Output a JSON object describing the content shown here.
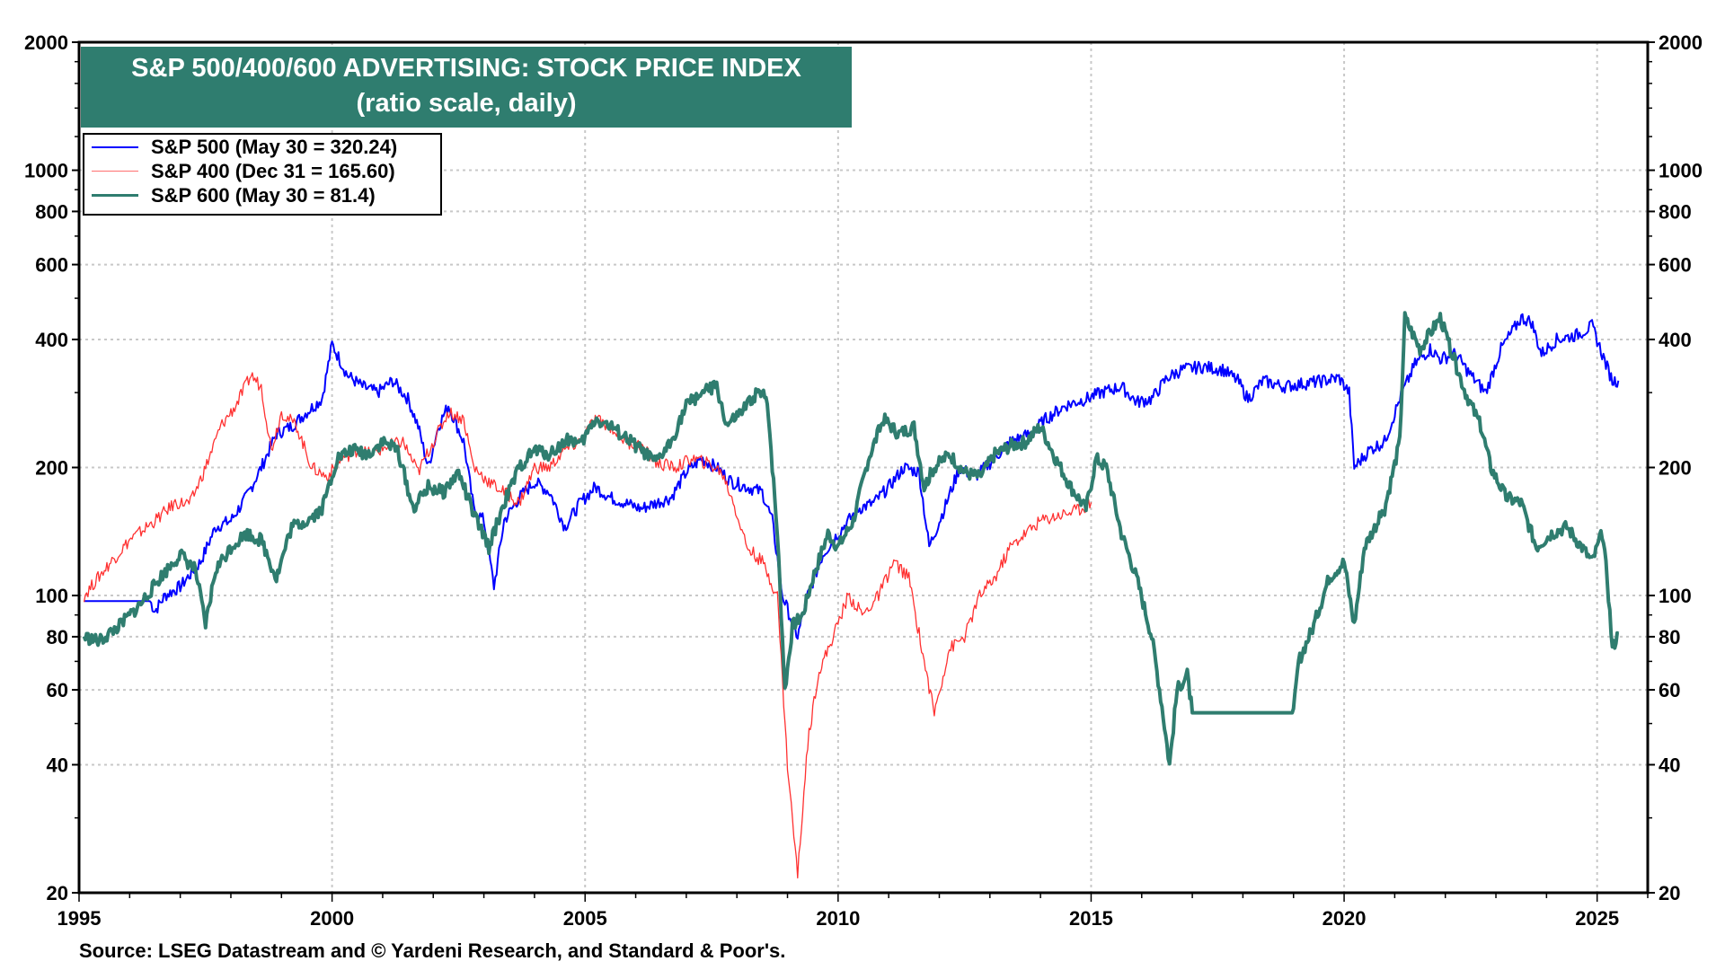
{
  "chart_data": {
    "type": "line",
    "title": "S&P 500/400/600 ADVERTISING: STOCK PRICE INDEX",
    "subtitle": "(ratio scale, daily)",
    "xlabel": "",
    "ylabel": "",
    "yscale": "log",
    "xlim": [
      1995,
      2026
    ],
    "ylim": [
      20,
      2000
    ],
    "x_ticks": [
      "1995",
      "2000",
      "2005",
      "2010",
      "2015",
      "2020",
      "2025"
    ],
    "y_ticks": [
      "20",
      "40",
      "60",
      "80",
      "100",
      "200",
      "400",
      "600",
      "800",
      "1000",
      "2000"
    ],
    "grid": true,
    "legend_position": "top-left",
    "source": "Source: LSEG Datastream and © Yardeni Research, and Standard & Poor's.",
    "series": [
      {
        "name": "S&P 500 (May 30 = 320.24)",
        "color": "#0000FF",
        "points": [
          [
            1995.1,
            97
          ],
          [
            1996.4,
            97
          ],
          [
            1996.5,
            92
          ],
          [
            1996.7,
            100
          ],
          [
            1997.0,
            105
          ],
          [
            1997.4,
            120
          ],
          [
            1997.7,
            145
          ],
          [
            1998.0,
            150
          ],
          [
            1998.3,
            170
          ],
          [
            1998.6,
            200
          ],
          [
            1998.9,
            240
          ],
          [
            1999.2,
            250
          ],
          [
            1999.5,
            270
          ],
          [
            1999.8,
            290
          ],
          [
            2000.0,
            390
          ],
          [
            2000.3,
            330
          ],
          [
            2000.6,
            310
          ],
          [
            2000.9,
            300
          ],
          [
            2001.2,
            320
          ],
          [
            2001.5,
            290
          ],
          [
            2001.7,
            250
          ],
          [
            2001.9,
            200
          ],
          [
            2002.1,
            250
          ],
          [
            2002.3,
            280
          ],
          [
            2002.6,
            230
          ],
          [
            2002.8,
            160
          ],
          [
            2003.0,
            150
          ],
          [
            2003.2,
            105
          ],
          [
            2003.4,
            150
          ],
          [
            2003.7,
            170
          ],
          [
            2004.0,
            185
          ],
          [
            2004.3,
            175
          ],
          [
            2004.6,
            145
          ],
          [
            2004.9,
            165
          ],
          [
            2005.2,
            180
          ],
          [
            2005.5,
            170
          ],
          [
            2005.8,
            165
          ],
          [
            2006.1,
            160
          ],
          [
            2006.4,
            165
          ],
          [
            2006.7,
            170
          ],
          [
            2007.0,
            195
          ],
          [
            2007.3,
            210
          ],
          [
            2007.6,
            200
          ],
          [
            2007.9,
            185
          ],
          [
            2008.2,
            180
          ],
          [
            2008.5,
            175
          ],
          [
            2008.7,
            150
          ],
          [
            2008.9,
            100
          ],
          [
            2009.2,
            80
          ],
          [
            2009.4,
            100
          ],
          [
            2009.7,
            125
          ],
          [
            2010.0,
            140
          ],
          [
            2010.4,
            160
          ],
          [
            2010.7,
            165
          ],
          [
            2011.0,
            180
          ],
          [
            2011.3,
            200
          ],
          [
            2011.6,
            195
          ],
          [
            2011.8,
            130
          ],
          [
            2012.1,
            160
          ],
          [
            2012.4,
            200
          ],
          [
            2012.7,
            190
          ],
          [
            2013.0,
            205
          ],
          [
            2013.4,
            230
          ],
          [
            2013.8,
            240
          ],
          [
            2014.1,
            260
          ],
          [
            2014.5,
            280
          ],
          [
            2014.9,
            290
          ],
          [
            2015.2,
            300
          ],
          [
            2015.6,
            310
          ],
          [
            2015.9,
            285
          ],
          [
            2016.2,
            290
          ],
          [
            2016.5,
            325
          ],
          [
            2016.8,
            340
          ],
          [
            2017.2,
            345
          ],
          [
            2017.6,
            340
          ],
          [
            2017.9,
            320
          ],
          [
            2018.1,
            290
          ],
          [
            2018.4,
            320
          ],
          [
            2018.8,
            310
          ],
          [
            2019.2,
            315
          ],
          [
            2019.6,
            320
          ],
          [
            2019.9,
            325
          ],
          [
            2020.1,
            300
          ],
          [
            2020.2,
            200
          ],
          [
            2020.5,
            220
          ],
          [
            2020.8,
            230
          ],
          [
            2021.1,
            290
          ],
          [
            2021.4,
            350
          ],
          [
            2021.7,
            380
          ],
          [
            2021.9,
            360
          ],
          [
            2022.2,
            370
          ],
          [
            2022.5,
            330
          ],
          [
            2022.8,
            300
          ],
          [
            2023.1,
            380
          ],
          [
            2023.5,
            450
          ],
          [
            2023.7,
            440
          ],
          [
            2023.9,
            370
          ],
          [
            2024.2,
            400
          ],
          [
            2024.6,
            410
          ],
          [
            2024.9,
            430
          ],
          [
            2025.1,
            370
          ],
          [
            2025.3,
            320
          ],
          [
            2025.42,
            320
          ]
        ]
      },
      {
        "name": "S&P 400 (Dec 31 = 165.60)",
        "color": "#FF0000",
        "points": [
          [
            1995.1,
            100
          ],
          [
            1995.5,
            115
          ],
          [
            1996.0,
            135
          ],
          [
            1996.5,
            150
          ],
          [
            1996.9,
            165
          ],
          [
            1997.2,
            165
          ],
          [
            1997.5,
            200
          ],
          [
            1997.8,
            250
          ],
          [
            1998.1,
            280
          ],
          [
            1998.4,
            330
          ],
          [
            1998.6,
            310
          ],
          [
            1998.8,
            220
          ],
          [
            1999.0,
            270
          ],
          [
            1999.3,
            250
          ],
          [
            1999.6,
            200
          ],
          [
            1999.9,
            190
          ],
          [
            2000.2,
            210
          ],
          [
            2000.5,
            220
          ],
          [
            2000.8,
            215
          ],
          [
            2001.1,
            225
          ],
          [
            2001.4,
            230
          ],
          [
            2001.7,
            195
          ],
          [
            2002.0,
            230
          ],
          [
            2002.3,
            270
          ],
          [
            2002.6,
            260
          ],
          [
            2002.8,
            200
          ],
          [
            2003.1,
            185
          ],
          [
            2003.4,
            175
          ],
          [
            2003.7,
            165
          ],
          [
            2004.0,
            200
          ],
          [
            2004.3,
            200
          ],
          [
            2004.6,
            220
          ],
          [
            2004.9,
            230
          ],
          [
            2005.2,
            260
          ],
          [
            2005.5,
            250
          ],
          [
            2005.8,
            230
          ],
          [
            2006.1,
            225
          ],
          [
            2006.4,
            205
          ],
          [
            2006.8,
            200
          ],
          [
            2007.1,
            210
          ],
          [
            2007.4,
            205
          ],
          [
            2007.7,
            195
          ],
          [
            2007.9,
            170
          ],
          [
            2008.2,
            130
          ],
          [
            2008.5,
            120
          ],
          [
            2008.8,
            100
          ],
          [
            2009.0,
            40
          ],
          [
            2009.2,
            22
          ],
          [
            2009.4,
            45
          ],
          [
            2009.6,
            65
          ],
          [
            2009.9,
            80
          ],
          [
            2010.2,
            100
          ],
          [
            2010.5,
            90
          ],
          [
            2010.8,
            100
          ],
          [
            2011.1,
            120
          ],
          [
            2011.4,
            110
          ],
          [
            2011.7,
            70
          ],
          [
            2011.9,
            53
          ],
          [
            2012.2,
            75
          ],
          [
            2012.5,
            80
          ],
          [
            2012.8,
            100
          ],
          [
            2013.1,
            110
          ],
          [
            2013.4,
            130
          ],
          [
            2013.7,
            140
          ],
          [
            2014.0,
            150
          ],
          [
            2014.4,
            155
          ],
          [
            2014.8,
            160
          ],
          [
            2015.0,
            165.6
          ]
        ]
      },
      {
        "name": "S&P 600 (May 30 = 81.4)",
        "color": "#2F7D6F",
        "points": [
          [
            1995.1,
            80
          ],
          [
            1995.4,
            78
          ],
          [
            1995.8,
            85
          ],
          [
            1996.2,
            95
          ],
          [
            1996.6,
            110
          ],
          [
            1997.0,
            125
          ],
          [
            1997.3,
            115
          ],
          [
            1997.5,
            85
          ],
          [
            1997.7,
            115
          ],
          [
            1998.0,
            130
          ],
          [
            1998.3,
            140
          ],
          [
            1998.6,
            135
          ],
          [
            1998.9,
            110
          ],
          [
            1999.2,
            145
          ],
          [
            1999.5,
            150
          ],
          [
            1999.8,
            160
          ],
          [
            2000.1,
            210
          ],
          [
            2000.4,
            220
          ],
          [
            2000.7,
            215
          ],
          [
            2001.0,
            230
          ],
          [
            2001.3,
            220
          ],
          [
            2001.6,
            160
          ],
          [
            2001.9,
            180
          ],
          [
            2002.2,
            175
          ],
          [
            2002.5,
            195
          ],
          [
            2002.8,
            155
          ],
          [
            2003.1,
            130
          ],
          [
            2003.4,
            165
          ],
          [
            2003.7,
            200
          ],
          [
            2004.0,
            220
          ],
          [
            2004.3,
            215
          ],
          [
            2004.7,
            235
          ],
          [
            2004.9,
            225
          ],
          [
            2005.2,
            260
          ],
          [
            2005.5,
            250
          ],
          [
            2005.8,
            235
          ],
          [
            2006.1,
            220
          ],
          [
            2006.4,
            205
          ],
          [
            2006.7,
            230
          ],
          [
            2007.0,
            280
          ],
          [
            2007.3,
            300
          ],
          [
            2007.6,
            310
          ],
          [
            2007.8,
            250
          ],
          [
            2008.1,
            270
          ],
          [
            2008.4,
            300
          ],
          [
            2008.6,
            290
          ],
          [
            2008.8,
            140
          ],
          [
            2008.95,
            60
          ],
          [
            2009.1,
            85
          ],
          [
            2009.3,
            90
          ],
          [
            2009.5,
            110
          ],
          [
            2009.8,
            140
          ],
          [
            2010.0,
            130
          ],
          [
            2010.3,
            150
          ],
          [
            2010.6,
            210
          ],
          [
            2010.9,
            260
          ],
          [
            2011.2,
            240
          ],
          [
            2011.5,
            250
          ],
          [
            2011.7,
            180
          ],
          [
            2011.9,
            200
          ],
          [
            2012.2,
            215
          ],
          [
            2012.5,
            195
          ],
          [
            2012.8,
            190
          ],
          [
            2013.1,
            215
          ],
          [
            2013.4,
            225
          ],
          [
            2013.7,
            230
          ],
          [
            2014.0,
            250
          ],
          [
            2014.3,
            210
          ],
          [
            2014.6,
            180
          ],
          [
            2014.9,
            160
          ],
          [
            2015.1,
            210
          ],
          [
            2015.3,
            200
          ],
          [
            2015.6,
            140
          ],
          [
            2015.9,
            110
          ],
          [
            2016.2,
            80
          ],
          [
            2016.4,
            55
          ],
          [
            2016.55,
            40
          ],
          [
            2016.7,
            60
          ],
          [
            2016.9,
            65
          ],
          [
            2017.0,
            53
          ],
          [
            2019.0,
            53
          ],
          [
            2019.1,
            70
          ],
          [
            2019.4,
            85
          ],
          [
            2019.7,
            110
          ],
          [
            2020.0,
            120
          ],
          [
            2020.2,
            85
          ],
          [
            2020.4,
            130
          ],
          [
            2020.8,
            160
          ],
          [
            2021.1,
            230
          ],
          [
            2021.2,
            450
          ],
          [
            2021.5,
            380
          ],
          [
            2021.9,
            450
          ],
          [
            2022.1,
            380
          ],
          [
            2022.4,
            300
          ],
          [
            2022.7,
            250
          ],
          [
            2022.9,
            200
          ],
          [
            2023.2,
            170
          ],
          [
            2023.5,
            165
          ],
          [
            2023.8,
            130
          ],
          [
            2024.1,
            140
          ],
          [
            2024.4,
            145
          ],
          [
            2024.7,
            130
          ],
          [
            2024.9,
            120
          ],
          [
            2025.1,
            140
          ],
          [
            2025.2,
            110
          ],
          [
            2025.3,
            75
          ],
          [
            2025.42,
            81.4
          ]
        ]
      }
    ]
  }
}
